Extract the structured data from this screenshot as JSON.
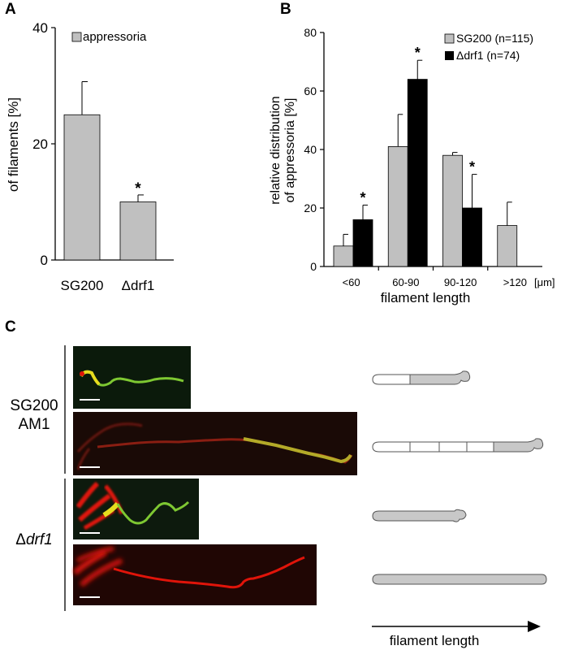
{
  "panels": {
    "a": {
      "letter": "A"
    },
    "b": {
      "letter": "B"
    },
    "c": {
      "letter": "C"
    }
  },
  "colors": {
    "gray_bar": "#c0c0c0",
    "black_bar": "#000000",
    "micro_red": "#e0140a",
    "micro_green": "#7ec832",
    "micro_yellow": "#e6dc1e",
    "cell_gray": "#c8c8c8"
  },
  "chart_data": [
    {
      "panel": "A",
      "type": "bar",
      "categories": [
        "SG200",
        "Δdrf1"
      ],
      "series": [
        {
          "name": "appressoria",
          "values": [
            25,
            10
          ],
          "error": [
            5.7,
            1.2
          ]
        }
      ],
      "ylabel": "of filaments [%]",
      "yticks": [
        0,
        20,
        40
      ],
      "ylim": [
        0,
        40
      ],
      "significance": [
        "",
        "*"
      ],
      "legend": "top-left"
    },
    {
      "panel": "B",
      "type": "bar",
      "categories": [
        "<60",
        "60-90",
        "90-120",
        ">120"
      ],
      "series": [
        {
          "name": "SG200 (n=115)",
          "values": [
            7,
            41,
            38,
            14
          ],
          "error": [
            4,
            11,
            1,
            8
          ]
        },
        {
          "name": "Δdrf1 (n=74)",
          "values": [
            16,
            64,
            20,
            0
          ],
          "error": [
            5,
            6.5,
            11.5,
            0
          ]
        }
      ],
      "ylabel": "relative distribution\nof appressoria [%]",
      "xlabel": "filament length",
      "unit": "[μm]",
      "yticks": [
        0,
        20,
        40,
        60,
        80
      ],
      "ylim": [
        0,
        80
      ],
      "significance": [
        "*",
        "*",
        "*",
        ""
      ],
      "legend": "top-right"
    }
  ],
  "panel_c": {
    "strain_1": [
      "SG200",
      "AM1"
    ],
    "strain_2_prefix": "Δ",
    "strain_2_name": "drf1",
    "arrow_label": "filament length"
  }
}
